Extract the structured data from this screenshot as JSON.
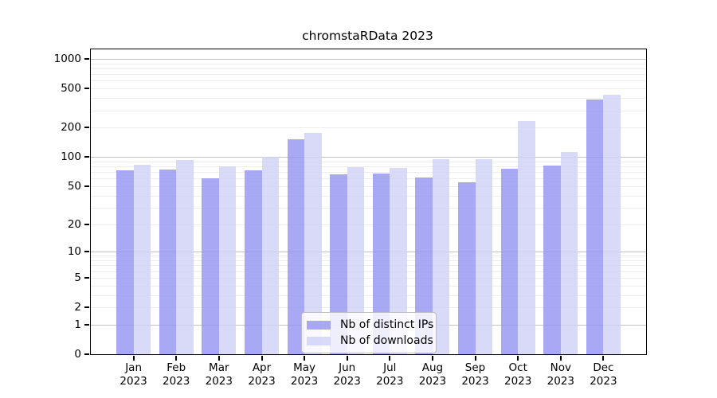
{
  "chart_data": {
    "type": "bar",
    "title": "chromstaRData 2023",
    "categories": [
      "Jan 2023",
      "Feb 2023",
      "Mar 2023",
      "Apr 2023",
      "May 2023",
      "Jun 2023",
      "Jul 2023",
      "Aug 2023",
      "Sep 2023",
      "Oct 2023",
      "Nov 2023",
      "Dec 2023"
    ],
    "months": [
      "Jan",
      "Feb",
      "Mar",
      "Apr",
      "May",
      "Jun",
      "Jul",
      "Aug",
      "Sep",
      "Oct",
      "Nov",
      "Dec"
    ],
    "year_label": "2023",
    "series": [
      {
        "name": "Nb of distinct IPs",
        "color": "#9292f3",
        "alpha": 0.8,
        "values": [
          73,
          74,
          60,
          73,
          152,
          66,
          67,
          61,
          55,
          76,
          82,
          387
        ]
      },
      {
        "name": "Nb of downloads",
        "color": "#d0d0f6",
        "alpha": 0.8,
        "values": [
          83,
          93,
          80,
          100,
          176,
          79,
          77,
          95,
          95,
          235,
          112,
          436
        ]
      }
    ],
    "xlabel": "",
    "ylabel": "",
    "yscale": "log1p",
    "ylim": [
      0,
      1250
    ],
    "yticks": [
      1000,
      500,
      200,
      100,
      50,
      20,
      10,
      5,
      2,
      1,
      0
    ],
    "grid": {
      "major_lines": [
        1,
        10,
        100,
        1000
      ],
      "minor_multiples": [
        2,
        3,
        4,
        5,
        6,
        7,
        8,
        9
      ],
      "minor_decades": [
        1,
        10,
        100
      ]
    },
    "legend_position": "lower center"
  }
}
